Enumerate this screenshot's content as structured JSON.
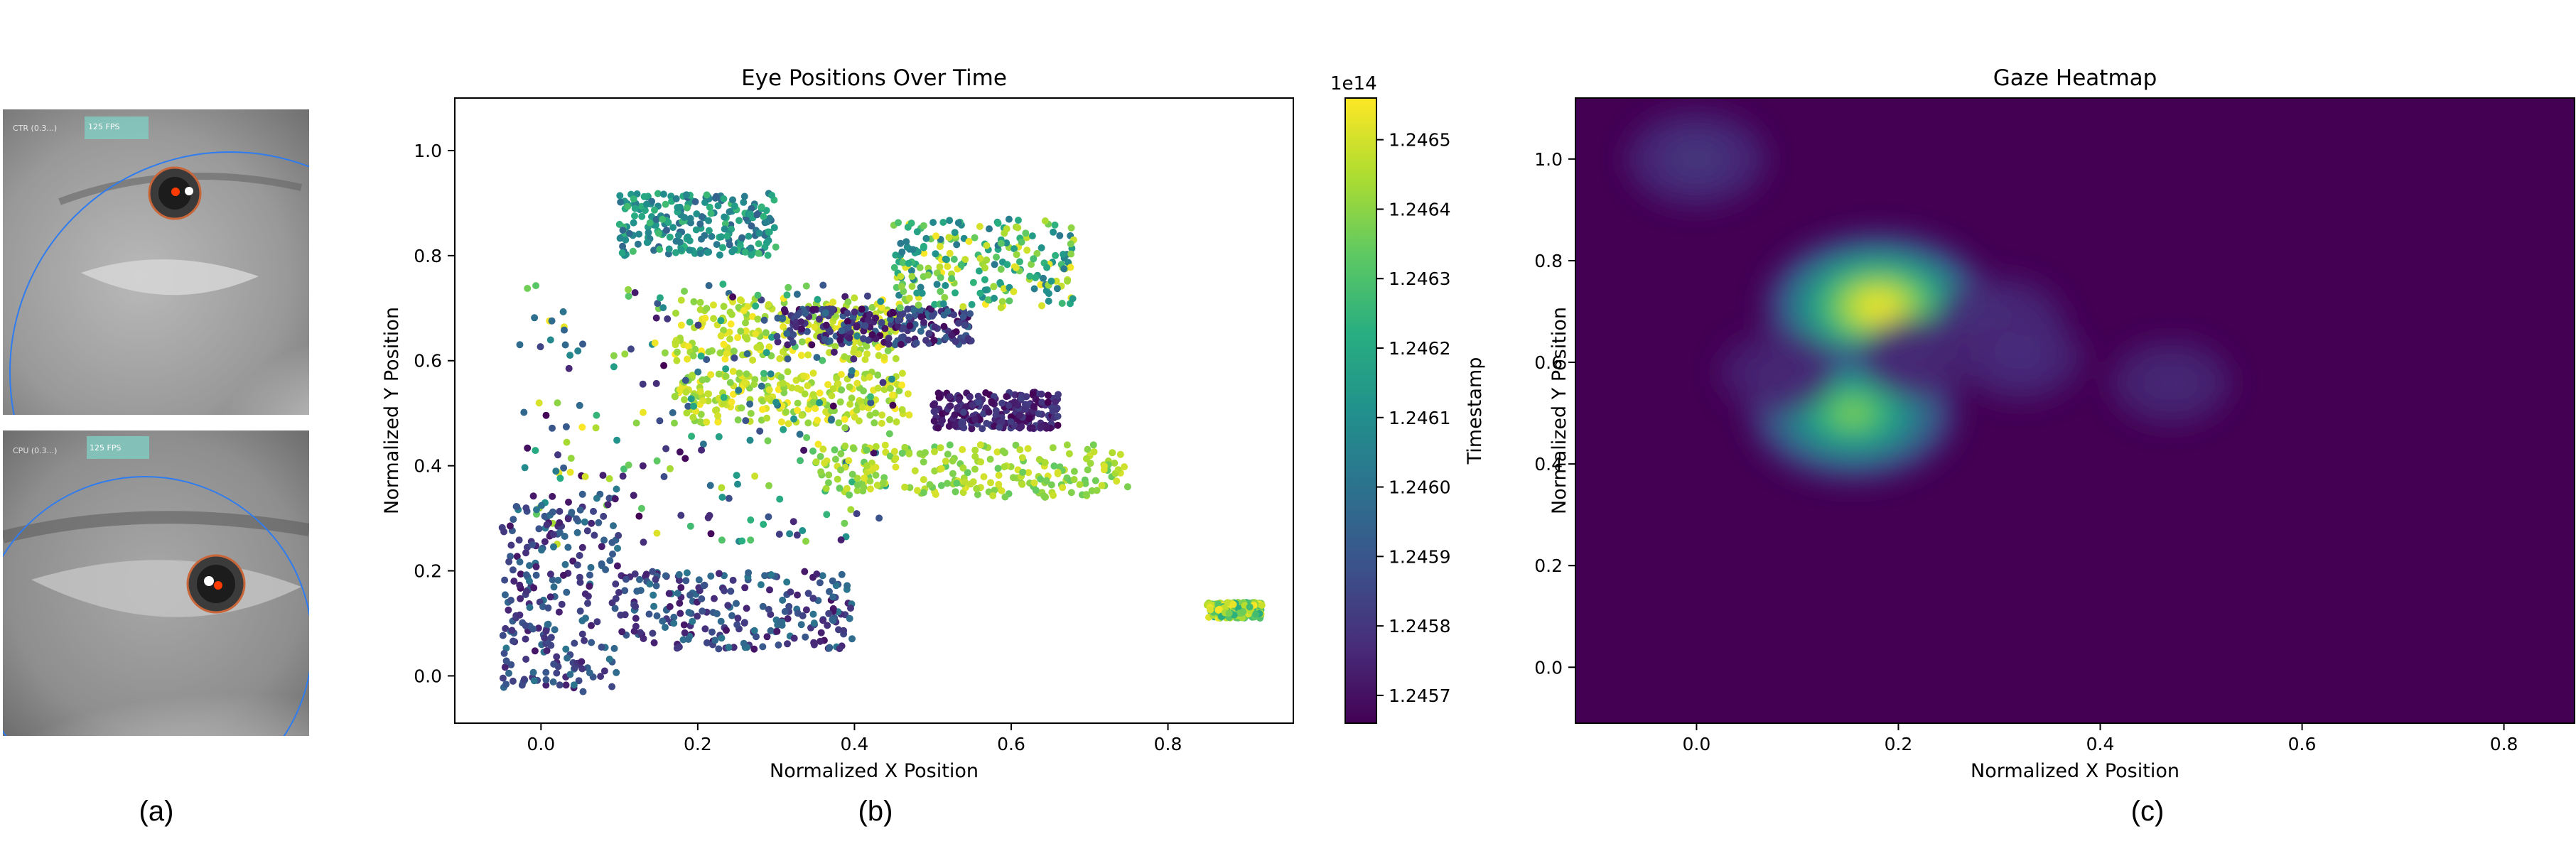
{
  "panels": {
    "a": {
      "caption": "(a)",
      "top_eye": {
        "overlay_left": "CTR (0.3...)",
        "overlay_fps": "125 FPS"
      },
      "bottom_eye": {
        "overlay_left": "CPU (0.3...)",
        "overlay_fps": "125 FPS"
      }
    },
    "b": {
      "caption": "(b)"
    },
    "c": {
      "caption": "(c)"
    }
  },
  "chart_data": [
    {
      "type": "scatter",
      "title": "Eye Positions Over Time",
      "xlabel": "Normalized X Position",
      "ylabel": "Normalized Y Position",
      "xlim": [
        -0.11,
        0.96
      ],
      "ylim": [
        -0.09,
        1.1
      ],
      "xticks": [
        "0.0",
        "0.2",
        "0.4",
        "0.6",
        "0.8"
      ],
      "yticks": [
        "0.0",
        "0.2",
        "0.4",
        "0.6",
        "0.8",
        "1.0"
      ],
      "colormap": "viridis",
      "colorbar": {
        "label": "Timestamp",
        "offset_label": "1e14",
        "range": [
          1.24566,
          1.24656
        ],
        "ticks": [
          "1.2457",
          "1.2458",
          "1.2459",
          "1.2460",
          "1.2461",
          "1.2462",
          "1.2463",
          "1.2464",
          "1.2465"
        ]
      },
      "clusters": [
        {
          "x": [
            0.17,
            0.46
          ],
          "y": [
            0.6,
            0.72
          ],
          "t": [
            0.8,
            1.0
          ]
        },
        {
          "x": [
            0.17,
            0.47
          ],
          "y": [
            0.48,
            0.58
          ],
          "t": [
            0.8,
            1.0
          ]
        },
        {
          "x": [
            -0.03,
            0.45
          ],
          "y": [
            0.25,
            0.75
          ],
          "t": [
            0.0,
            1.0
          ]
        },
        {
          "x": [
            0.3,
            0.55
          ],
          "y": [
            0.63,
            0.7
          ],
          "t": [
            0.0,
            0.35
          ]
        },
        {
          "x": [
            0.35,
            0.75
          ],
          "y": [
            0.34,
            0.44
          ],
          "t": [
            0.75,
            0.95
          ]
        },
        {
          "x": [
            0.5,
            0.66
          ],
          "y": [
            0.47,
            0.54
          ],
          "t": [
            0.0,
            0.2
          ]
        },
        {
          "x": [
            0.1,
            0.3
          ],
          "y": [
            0.8,
            0.92
          ],
          "t": [
            0.3,
            0.7
          ]
        },
        {
          "x": [
            0.45,
            0.68
          ],
          "y": [
            0.7,
            0.87
          ],
          "t": [
            0.4,
            1.0
          ]
        },
        {
          "x": [
            0.1,
            0.4
          ],
          "y": [
            0.05,
            0.2
          ],
          "t": [
            0.05,
            0.4
          ]
        },
        {
          "x": [
            -0.05,
            0.1
          ],
          "y": [
            -0.03,
            0.35
          ],
          "t": [
            0.05,
            0.4
          ]
        },
        {
          "x": [
            0.85,
            0.92
          ],
          "y": [
            0.11,
            0.14
          ],
          "t": [
            0.6,
            1.0
          ]
        }
      ],
      "point_count": 2600
    },
    {
      "type": "heatmap",
      "title": "Gaze Heatmap",
      "xlabel": "Normalized X Position",
      "ylabel": "Normalized Y Position",
      "xlim": [
        -0.12,
        0.87
      ],
      "ylim": [
        -0.11,
        1.12
      ],
      "xticks": [
        "0.0",
        "0.2",
        "0.4",
        "0.6",
        "0.8"
      ],
      "yticks": [
        "0.0",
        "0.2",
        "0.4",
        "0.6",
        "0.8",
        "1.0"
      ],
      "colormap": "viridis",
      "hotspots": [
        {
          "x": 0.18,
          "y": 0.71,
          "intensity": 1.0
        },
        {
          "x": 0.155,
          "y": 0.5,
          "intensity": 0.85
        },
        {
          "x": 0.0,
          "y": 1.0,
          "intensity": 0.3
        },
        {
          "x": 0.3,
          "y": 0.68,
          "intensity": 0.22
        },
        {
          "x": 0.32,
          "y": 0.61,
          "intensity": 0.2
        },
        {
          "x": 0.47,
          "y": 0.56,
          "intensity": 0.15
        },
        {
          "x": 0.08,
          "y": 0.58,
          "intensity": 0.12
        },
        {
          "x": 0.22,
          "y": 0.61,
          "intensity": 0.12
        }
      ]
    }
  ]
}
